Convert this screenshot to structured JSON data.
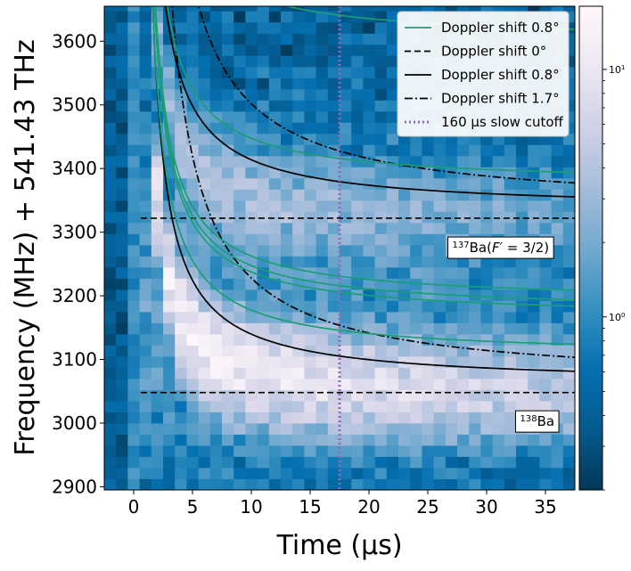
{
  "chart_data": {
    "type": "heatmap",
    "xlabel": "Time (μs)",
    "ylabel": "Frequency (MHz) + 541.43 THz",
    "xlim": [
      -2.5,
      37.5
    ],
    "ylim": [
      2895,
      3655
    ],
    "x_ticks": [
      "0",
      "5",
      "10",
      "15",
      "20",
      "25",
      "30",
      "35"
    ],
    "x_tick_values": [
      0,
      5,
      10,
      15,
      20,
      25,
      30,
      35
    ],
    "y_ticks": [
      "2900",
      "3000",
      "3100",
      "3200",
      "3300",
      "3400",
      "3500",
      "3600"
    ],
    "y_tick_values": [
      2900,
      3000,
      3100,
      3200,
      3300,
      3400,
      3500,
      3600
    ],
    "colorbar": {
      "scale": "log",
      "range": [
        0.2,
        18
      ],
      "ticks": [
        {
          "label": "10",
          "sup": "0",
          "value": 1
        },
        {
          "label": "10",
          "sup": "1",
          "value": 10
        }
      ],
      "colors": [
        "#023858",
        "#045a8d",
        "#0570b0",
        "#3690c0",
        "#74a9cf",
        "#a6bddb",
        "#d0d1e6",
        "#ece7f2",
        "#fff7fb"
      ]
    },
    "peaks": {
      "ba138_center_MHz": 3048,
      "ba137_center_MHz": 3322
    },
    "legend": {
      "placement": "top-right",
      "entries": [
        {
          "label": "Doppler shift 0.8°",
          "color": "#1b9e77",
          "style": "solid"
        },
        {
          "label": "Doppler shift 0°",
          "color": "#000000",
          "style": "dashed"
        },
        {
          "label": "Doppler shift 0.8°",
          "color": "#000000",
          "style": "solid"
        },
        {
          "label": "Doppler shift 1.7°",
          "color": "#000000",
          "style": "dashdot"
        },
        {
          "label": "160 μs slow cutoff",
          "color": "#9467bd",
          "style": "dotted"
        }
      ]
    },
    "series": [
      {
        "style": "dashed",
        "color": "#000000",
        "asymptote": 3322,
        "A": 0,
        "x_start": 0.6
      },
      {
        "style": "dashed",
        "color": "#000000",
        "asymptote": 3048,
        "A": 0,
        "x_start": 0.6
      },
      {
        "style": "solid",
        "color": "#000000",
        "asymptote": 3335,
        "A": 760,
        "x_start": 0.6
      },
      {
        "style": "solid",
        "color": "#000000",
        "asymptote": 3061,
        "A": 760,
        "x_start": 0.6
      },
      {
        "style": "dashdot",
        "color": "#000000",
        "asymptote": 3335,
        "A": 1560,
        "x_start": 0.9
      },
      {
        "style": "dashdot",
        "color": "#000000",
        "asymptote": 3061,
        "A": 1560,
        "x_start": 0.9
      },
      {
        "style": "solid",
        "color": "#1b9e77",
        "asymptote": 3600,
        "A": 700,
        "x_start": 0.6
      },
      {
        "style": "solid",
        "color": "#1b9e77",
        "asymptote": 3375,
        "A": 700,
        "x_start": 0.6
      },
      {
        "style": "solid",
        "color": "#1b9e77",
        "asymptote": 3190,
        "A": 700,
        "x_start": 0.6
      },
      {
        "style": "solid",
        "color": "#1b9e77",
        "asymptote": 3175,
        "A": 700,
        "x_start": 0.6
      },
      {
        "style": "solid",
        "color": "#1b9e77",
        "asymptote": 3165,
        "A": 700,
        "x_start": 0.6
      },
      {
        "style": "solid",
        "color": "#1b9e77",
        "asymptote": 3105,
        "A": 700,
        "x_start": 0.6
      }
    ],
    "cutoff": {
      "x": 17.5,
      "color": "#9467bd"
    },
    "annotations": [
      {
        "label_html": "<tspan baseline-shift='super' font-size='10'>137</tspan><tspan>Ba(</tspan><tspan font-style='italic'>F′</tspan><tspan> = 3/2)</tspan>",
        "text": "137Ba(F′ = 3/2)",
        "x": 31.2,
        "y": 3277
      },
      {
        "label_html": "<tspan baseline-shift='super' font-size='10'>138</tspan><tspan>Ba</tspan>",
        "text": "138Ba",
        "x": 34.3,
        "y": 3004
      }
    ]
  }
}
